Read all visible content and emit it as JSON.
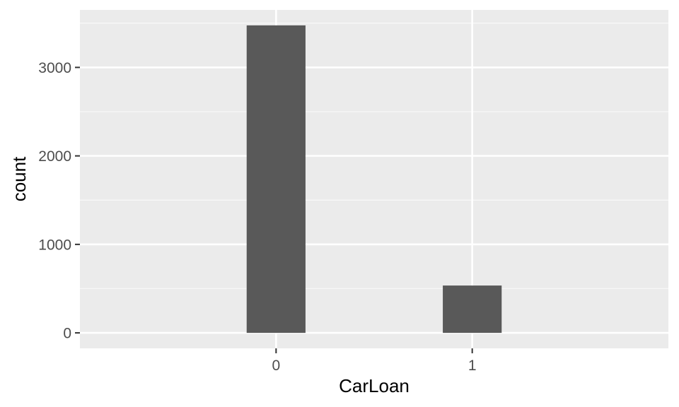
{
  "chart_data": {
    "type": "bar",
    "title": "",
    "xlabel": "CarLoan",
    "ylabel": "count",
    "categories": [
      "0",
      "1"
    ],
    "values": [
      3475,
      535
    ],
    "ylim": [
      -175,
      3650
    ],
    "yticks": [
      0,
      1000,
      2000,
      3000
    ],
    "ytick_labels": [
      "0",
      "1000",
      "2000",
      "3000"
    ],
    "grid": true,
    "legend": "none"
  },
  "colors": {
    "panel": "#ebebeb",
    "grid_major": "#ffffff",
    "grid_minor": "#f7f7f7",
    "bar": "#595959",
    "tick": "#333333"
  }
}
